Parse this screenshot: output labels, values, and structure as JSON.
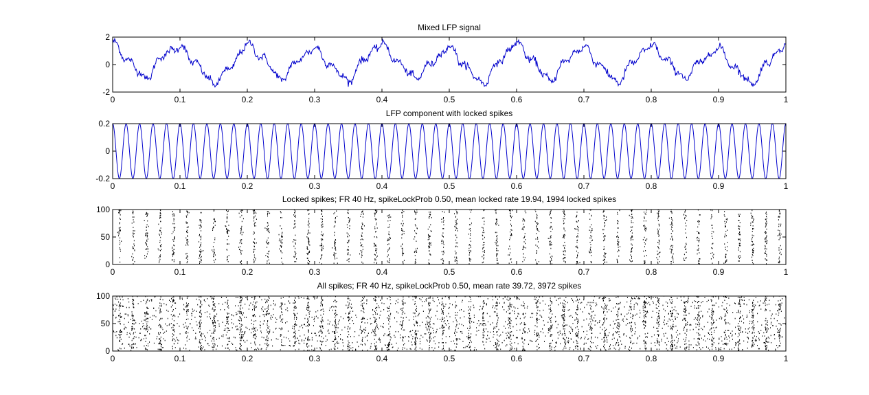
{
  "figure": {
    "background": "#ffffff"
  },
  "chart_data": [
    {
      "type": "line",
      "title": "Mixed LFP signal",
      "xlabel": "",
      "ylabel": "",
      "xlim": [
        0,
        1
      ],
      "ylim": [
        -2,
        2
      ],
      "xticks": [
        "0",
        "0.1",
        "0.2",
        "0.3",
        "0.4",
        "0.5",
        "0.6",
        "0.7",
        "0.8",
        "0.9",
        "1"
      ],
      "yticks": [
        "-2",
        "0",
        "2"
      ],
      "color": "#0000cc",
      "series": [
        {
          "x": [
            0,
            0.025,
            0.05,
            0.075,
            0.1,
            0.125,
            0.15,
            0.175,
            0.2,
            0.225,
            0.25,
            0.275,
            0.3,
            0.325,
            0.35,
            0.375,
            0.4,
            0.425,
            0.45,
            0.475,
            0.5,
            0.525,
            0.55,
            0.575,
            0.6,
            0.625,
            0.65,
            0.675,
            0.7,
            0.725,
            0.75,
            0.775,
            0.8,
            0.825,
            0.85,
            0.875,
            0.9,
            0.925,
            0.95,
            0.975,
            1
          ],
          "values": [
            1.6,
            0.2,
            -1.0,
            0.7,
            1.3,
            0.0,
            -1.4,
            -0.2,
            1.5,
            0.4,
            -1.1,
            0.3,
            1.2,
            -0.1,
            -1.2,
            0.5,
            1.5,
            0.1,
            -1.0,
            0.2,
            1.3,
            -0.2,
            -1.4,
            0.3,
            1.6,
            0.2,
            -1.2,
            0.4,
            1.3,
            -0.1,
            -1.3,
            0.3,
            1.4,
            0.2,
            -1.0,
            0.3,
            1.2,
            -0.3,
            -1.4,
            0.3,
            1.5
          ]
        }
      ]
    },
    {
      "type": "line",
      "title": "LFP component with locked spikes",
      "xlabel": "",
      "ylabel": "",
      "xlim": [
        0,
        1
      ],
      "ylim": [
        -0.2,
        0.2
      ],
      "xticks": [
        "0",
        "0.1",
        "0.2",
        "0.3",
        "0.4",
        "0.5",
        "0.6",
        "0.7",
        "0.8",
        "0.9",
        "1"
      ],
      "yticks": [
        "-0.2",
        "0",
        "0.2"
      ],
      "color": "#0000cc",
      "frequency_hz": 50,
      "amplitude": 0.2
    },
    {
      "type": "scatter",
      "title": "Locked spikes; FR 40 Hz, spikeLockProb 0.50, mean locked rate 19.94, 1994 locked spikes",
      "xlabel": "",
      "ylabel": "",
      "xlim": [
        0,
        1
      ],
      "ylim": [
        0,
        100
      ],
      "xticks": [
        "0",
        "0.1",
        "0.2",
        "0.3",
        "0.4",
        "0.5",
        "0.6",
        "0.7",
        "0.8",
        "0.9",
        "1"
      ],
      "yticks": [
        "0",
        "50",
        "100"
      ],
      "color": "#000000",
      "trials": 100,
      "spike_count": 1994,
      "lock_frequency_hz": 50
    },
    {
      "type": "scatter",
      "title": "All spikes; FR 40 Hz, spikeLockProb 0.50, mean rate 39.72, 3972 spikes",
      "xlabel": "",
      "ylabel": "",
      "xlim": [
        0,
        1
      ],
      "ylim": [
        0,
        100
      ],
      "xticks": [
        "0",
        "0.1",
        "0.2",
        "0.3",
        "0.4",
        "0.5",
        "0.6",
        "0.7",
        "0.8",
        "0.9",
        "1"
      ],
      "yticks": [
        "0",
        "50",
        "100"
      ],
      "color": "#000000",
      "trials": 100,
      "spike_count": 3972,
      "lock_frequency_hz": 50
    }
  ]
}
